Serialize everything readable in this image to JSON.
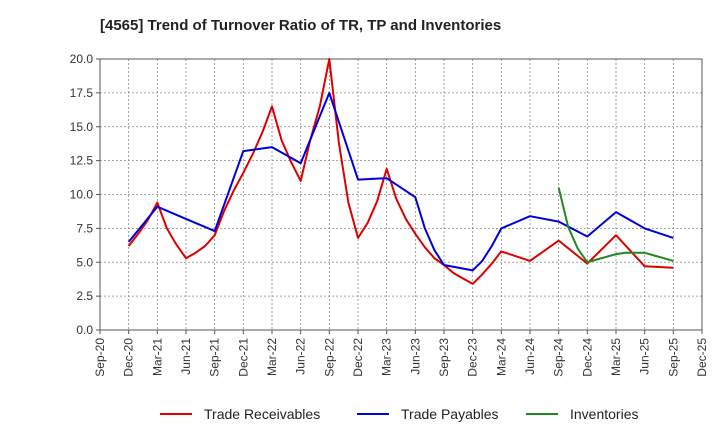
{
  "chart_data": {
    "type": "line",
    "title": "[4565]  Trend of Turnover Ratio of TR, TP and Inventories",
    "xlabel": "",
    "ylabel": "",
    "ylim": [
      0,
      20
    ],
    "yticks": [
      "0.0",
      "2.5",
      "5.0",
      "7.5",
      "10.0",
      "12.5",
      "15.0",
      "17.5",
      "20.0"
    ],
    "xticks": [
      "Sep-20",
      "Dec-20",
      "Mar-21",
      "Jun-21",
      "Sep-21",
      "Dec-21",
      "Mar-22",
      "Jun-22",
      "Sep-22",
      "Dec-22",
      "Mar-23",
      "Jun-23",
      "Sep-23",
      "Dec-23",
      "Mar-24",
      "Jun-24",
      "Sep-24",
      "Dec-24",
      "Mar-25",
      "Jun-25",
      "Sep-25",
      "Dec-25"
    ],
    "x_index_range": [
      0,
      63
    ],
    "grid": true,
    "legend_position": "bottom",
    "series": [
      {
        "name": "Trade Receivables",
        "color": "#dd0000",
        "x": [
          3,
          4,
          5,
          6,
          7,
          8,
          9,
          10,
          11,
          12,
          13,
          14,
          15,
          16,
          17,
          18,
          19,
          20,
          21,
          22,
          23,
          24,
          25,
          26,
          27,
          28,
          29,
          30,
          31,
          32,
          33,
          34,
          35,
          36,
          37,
          38,
          39,
          40,
          41,
          42,
          45,
          48,
          51,
          54,
          57,
          60
        ],
        "values": [
          6.2,
          7.1,
          8.1,
          9.4,
          7.5,
          6.3,
          5.3,
          5.7,
          6.2,
          7.0,
          8.8,
          10.3,
          11.6,
          13.0,
          14.6,
          16.5,
          14.0,
          12.4,
          11.0,
          14.0,
          16.5,
          20.0,
          13.8,
          9.4,
          6.8,
          7.9,
          9.5,
          11.9,
          9.7,
          8.2,
          7.1,
          6.1,
          5.3,
          4.8,
          4.2,
          3.8,
          3.4,
          4.1,
          4.9,
          5.8,
          5.1,
          6.6,
          4.9,
          7.0,
          4.7,
          4.6
        ]
      },
      {
        "name": "Trade Payables",
        "color": "#0000dd",
        "x": [
          3,
          6,
          9,
          12,
          15,
          18,
          21,
          24,
          27,
          30,
          33,
          34,
          35,
          36,
          39,
          40,
          41,
          42,
          45,
          48,
          51,
          54,
          57,
          60
        ],
        "values": [
          6.5,
          9.1,
          8.2,
          7.3,
          13.2,
          13.5,
          12.3,
          17.5,
          11.1,
          11.2,
          9.8,
          7.5,
          5.9,
          4.8,
          4.4,
          5.1,
          6.2,
          7.5,
          8.4,
          8.0,
          6.9,
          8.7,
          7.5,
          6.8
        ]
      },
      {
        "name": "Inventories",
        "color": "#228822",
        "x": [
          48,
          49,
          50,
          51,
          52,
          53,
          54,
          55,
          56,
          57,
          58,
          59,
          60
        ],
        "values": [
          10.5,
          7.6,
          6.0,
          5.0,
          5.2,
          5.4,
          5.6,
          5.7,
          5.7,
          5.7,
          5.5,
          5.3,
          5.1
        ]
      }
    ]
  }
}
